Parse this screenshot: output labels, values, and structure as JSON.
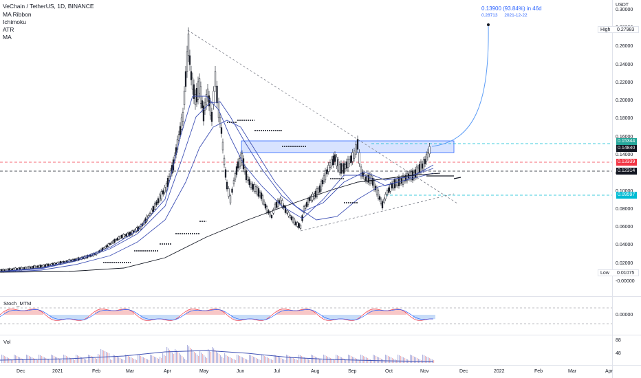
{
  "header": {
    "title": "VeChain / TetherUS, 1D, BINANCE",
    "indicators": [
      "MA Ribbon",
      "Ichimoku",
      "ATR",
      "MA"
    ]
  },
  "price_axis": {
    "currency": "USDT",
    "ticks": [
      "0.30000",
      "0.28000",
      "0.26000",
      "0.24000",
      "0.22000",
      "0.20000",
      "0.18000",
      "0.16000",
      "0.14000",
      "0.12000",
      "0.10000",
      "0.08000",
      "0.06000",
      "0.04000",
      "0.02000",
      "-0.00000"
    ],
    "high_label": "High",
    "high_value": "0.27983",
    "low_label": "Low",
    "low_value": "0.01075",
    "current_value": "0.15344",
    "marker_value": "0.14840",
    "red_level": "0.13339",
    "black_level": "0.12314",
    "teal_level": "0.09597"
  },
  "annotation": {
    "line1": "0.13900 (93.84%) in 46d",
    "price": "0.28713",
    "date": "2021-12-22"
  },
  "stoch": {
    "name": "Stoch_MTM",
    "tick": "0.00000"
  },
  "vol": {
    "name": "Vol",
    "ticks": [
      "88",
      "48"
    ]
  },
  "time_axis": [
    "Dec",
    "2021",
    "Feb",
    "Mar",
    "Apr",
    "May",
    "Jun",
    "Jul",
    "Aug",
    "Sep",
    "Oct",
    "Nov",
    "Dec",
    "2022",
    "Feb",
    "Mar",
    "Apr"
  ],
  "colors": {
    "up": "#26a69a",
    "down": "#ef5350",
    "ribbon": "#3f51b5",
    "zone": "#2962ff",
    "teal": "#00bcd4",
    "red": "#f23645",
    "candle": "#131722"
  }
}
